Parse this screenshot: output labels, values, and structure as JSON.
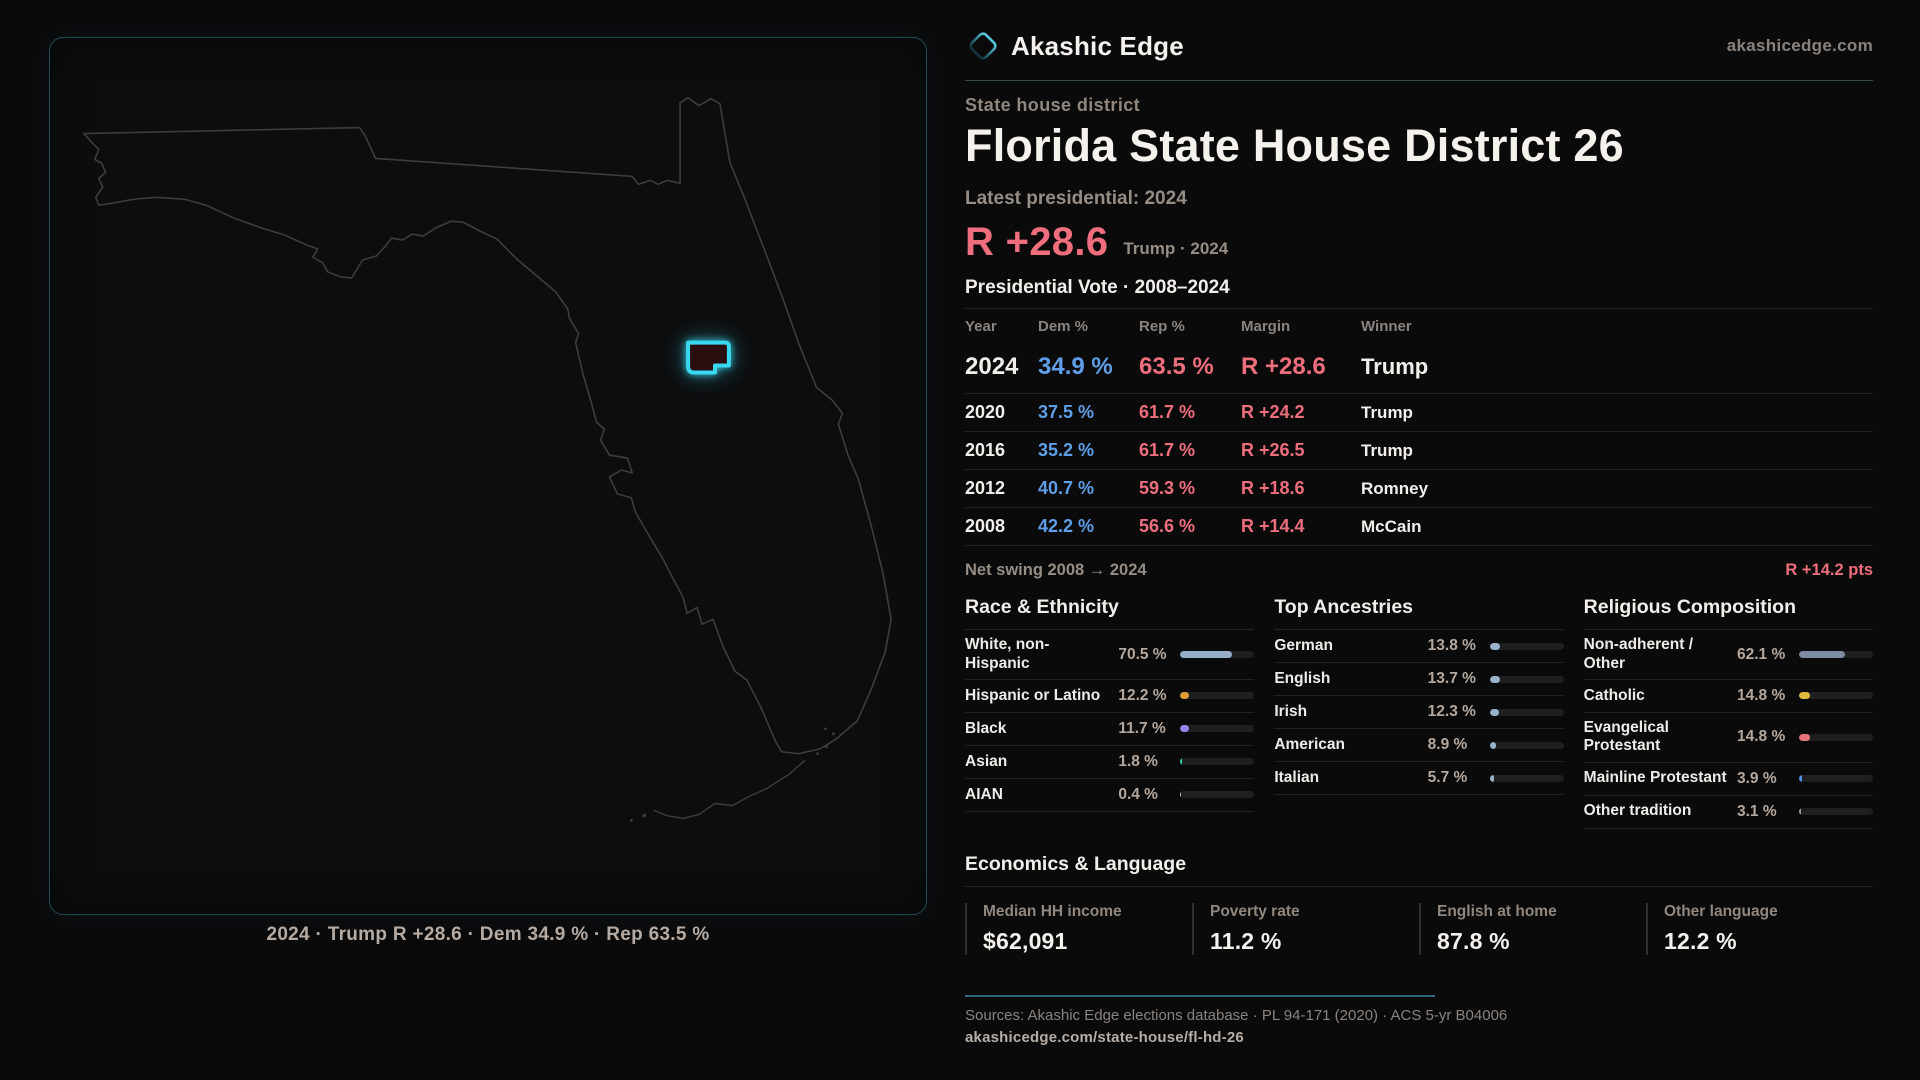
{
  "colors": {
    "accent_cyan": "#38d8f2",
    "dem_blue": "#5f9fe8",
    "rep_red": "#ee6e7d",
    "bar_track": "#1e1f21",
    "panel_border_teal": "#1d4a56"
  },
  "brand": {
    "name": "Akashic Edge",
    "site": "akashicedge.com",
    "eyebrow": "State house district"
  },
  "headline": {
    "title": "Florida State House District 26",
    "latest_label": "Latest presidential: 2024",
    "margin": "R +28.6",
    "margin_note": "Trump · 2024"
  },
  "map": {
    "caption": "2024 · Trump R +28.6 · Dem 34.9 % · Rep 63.5 %"
  },
  "vote_section": {
    "title": "Presidential Vote · 2008–2024",
    "net_swing_label": "Net swing 2008 → 2024",
    "net_swing_value": "R +14.2 pts"
  },
  "economics": {
    "title": "Economics & Language",
    "stats": [
      {
        "label": "Median HH income",
        "value": "$62,091"
      },
      {
        "label": "Poverty rate",
        "value": "11.2 %"
      },
      {
        "label": "English at home",
        "value": "87.8 %"
      },
      {
        "label": "Other language",
        "value": "12.2 %"
      }
    ]
  },
  "footer": {
    "sources": "Sources: Akashic Edge elections database · PL 94-171 (2020) · ACS 5-yr B04006",
    "url": "akashicedge.com/state-house/fl-hd-26"
  },
  "chart_data": [
    {
      "type": "table",
      "title": "Presidential Vote · 2008–2024",
      "columns": [
        "Year",
        "Dem %",
        "Rep %",
        "Margin",
        "Winner"
      ],
      "rows": [
        [
          "2024",
          34.9,
          63.5,
          "R +28.6",
          "Trump"
        ],
        [
          "2020",
          37.5,
          61.7,
          "R +24.2",
          "Trump"
        ],
        [
          "2016",
          35.2,
          61.7,
          "R +26.5",
          "Trump"
        ],
        [
          "2012",
          40.7,
          59.3,
          "R +18.6",
          "Romney"
        ],
        [
          "2008",
          42.2,
          56.6,
          "R +14.4",
          "McCain"
        ]
      ]
    },
    {
      "type": "bar",
      "title": "Race & Ethnicity",
      "categories": [
        "White, non-Hispanic",
        "Hispanic or Latino",
        "Black",
        "Asian",
        "AIAN"
      ],
      "values": [
        70.5,
        12.2,
        11.7,
        1.8,
        0.4
      ],
      "unit": "%",
      "xlim": [
        0,
        100
      ],
      "legend": "none",
      "grid": false,
      "bar_colors": [
        "#97aecb",
        "#e09c35",
        "#9186ee",
        "#2fd8b0",
        "#cccccc"
      ]
    },
    {
      "type": "bar",
      "title": "Top Ancestries",
      "categories": [
        "German",
        "English",
        "Irish",
        "American",
        "Italian"
      ],
      "values": [
        13.8,
        13.7,
        12.3,
        8.9,
        5.7
      ],
      "unit": "%",
      "xlim": [
        0,
        100
      ],
      "legend": "none",
      "grid": false,
      "bar_colors": [
        "#9ab3cd",
        "#9ab3cd",
        "#9ab3cd",
        "#9ab3cd",
        "#9ab3cd"
      ]
    },
    {
      "type": "bar",
      "title": "Religious Composition",
      "categories": [
        "Non-adherent / Other",
        "Catholic",
        "Evangelical Protestant",
        "Mainline Protestant",
        "Other tradition"
      ],
      "values": [
        62.1,
        14.8,
        14.8,
        3.9,
        3.1
      ],
      "unit": "%",
      "xlim": [
        0,
        100
      ],
      "legend": "none",
      "grid": false,
      "bar_colors": [
        "#7e8ca1",
        "#e0ba3e",
        "#e4737c",
        "#4f93e8",
        "#9a9a9a"
      ]
    }
  ]
}
